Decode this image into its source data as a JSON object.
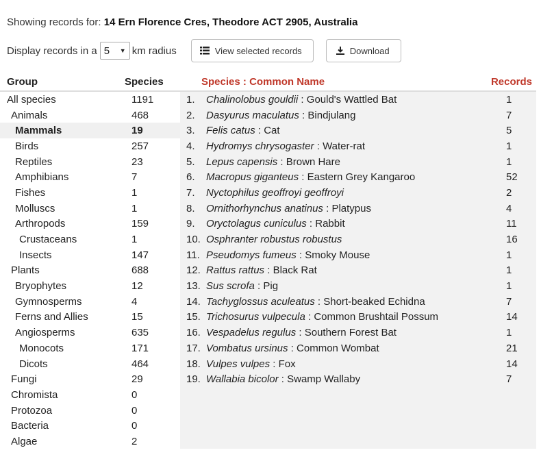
{
  "location": {
    "prefix": "Showing records for:",
    "address": "14 Ern Florence Cres, Theodore ACT 2905, Australia"
  },
  "controls": {
    "radius_prefix": "Display records in a",
    "radius_value": "5",
    "radius_suffix": "km radius",
    "view_selected_label": "View selected records",
    "download_label": "Download"
  },
  "groups": {
    "header_group": "Group",
    "header_species": "Species",
    "rows": [
      {
        "name": "All species",
        "count": "1191",
        "level": 0
      },
      {
        "name": "Animals",
        "count": "468",
        "level": 1
      },
      {
        "name": "Mammals",
        "count": "19",
        "level": 2,
        "selected": true
      },
      {
        "name": "Birds",
        "count": "257",
        "level": 2
      },
      {
        "name": "Reptiles",
        "count": "23",
        "level": 2
      },
      {
        "name": "Amphibians",
        "count": "7",
        "level": 2
      },
      {
        "name": "Fishes",
        "count": "1",
        "level": 2
      },
      {
        "name": "Molluscs",
        "count": "1",
        "level": 2
      },
      {
        "name": "Arthropods",
        "count": "159",
        "level": 2
      },
      {
        "name": "Crustaceans",
        "count": "1",
        "level": 3
      },
      {
        "name": "Insects",
        "count": "147",
        "level": 3
      },
      {
        "name": "Plants",
        "count": "688",
        "level": 1
      },
      {
        "name": "Bryophytes",
        "count": "12",
        "level": 2
      },
      {
        "name": "Gymnosperms",
        "count": "4",
        "level": 2
      },
      {
        "name": "Ferns and Allies",
        "count": "15",
        "level": 2
      },
      {
        "name": "Angiosperms",
        "count": "635",
        "level": 2
      },
      {
        "name": "Monocots",
        "count": "171",
        "level": 3
      },
      {
        "name": "Dicots",
        "count": "464",
        "level": 3
      },
      {
        "name": "Fungi",
        "count": "29",
        "level": 1
      },
      {
        "name": "Chromista",
        "count": "0",
        "level": 1
      },
      {
        "name": "Protozoa",
        "count": "0",
        "level": 1
      },
      {
        "name": "Bacteria",
        "count": "0",
        "level": 1
      },
      {
        "name": "Algae",
        "count": "2",
        "level": 1
      }
    ]
  },
  "species": {
    "header_species": "Species",
    "header_sep": " : ",
    "header_common": "Common Name",
    "header_records": "Records",
    "rows": [
      {
        "num": "1.",
        "sci": "Chalinolobus gouldii",
        "common": "Gould's Wattled Bat",
        "records": "1"
      },
      {
        "num": "2.",
        "sci": "Dasyurus maculatus",
        "common": "Bindjulang",
        "records": "7"
      },
      {
        "num": "3.",
        "sci": "Felis catus",
        "common": "Cat",
        "records": "5"
      },
      {
        "num": "4.",
        "sci": "Hydromys chrysogaster",
        "common": "Water-rat",
        "records": "1"
      },
      {
        "num": "5.",
        "sci": "Lepus capensis",
        "common": "Brown Hare",
        "records": "1"
      },
      {
        "num": "6.",
        "sci": "Macropus giganteus",
        "common": "Eastern Grey Kangaroo",
        "records": "52"
      },
      {
        "num": "7.",
        "sci": "Nyctophilus geoffroyi geoffroyi",
        "common": "",
        "records": "2"
      },
      {
        "num": "8.",
        "sci": "Ornithorhynchus anatinus",
        "common": "Platypus",
        "records": "4"
      },
      {
        "num": "9.",
        "sci": "Oryctolagus cuniculus",
        "common": "Rabbit",
        "records": "11"
      },
      {
        "num": "10.",
        "sci": "Osphranter robustus robustus",
        "common": "",
        "records": "16"
      },
      {
        "num": "11.",
        "sci": "Pseudomys fumeus",
        "common": "Smoky Mouse",
        "records": "1"
      },
      {
        "num": "12.",
        "sci": "Rattus rattus",
        "common": "Black Rat",
        "records": "1"
      },
      {
        "num": "13.",
        "sci": "Sus scrofa",
        "common": "Pig",
        "records": "1"
      },
      {
        "num": "14.",
        "sci": "Tachyglossus aculeatus",
        "common": "Short-beaked Echidna",
        "records": "7"
      },
      {
        "num": "15.",
        "sci": "Trichosurus vulpecula",
        "common": "Common Brushtail Possum",
        "records": "14"
      },
      {
        "num": "16.",
        "sci": "Vespadelus regulus",
        "common": "Southern Forest Bat",
        "records": "1"
      },
      {
        "num": "17.",
        "sci": "Vombatus ursinus",
        "common": "Common Wombat",
        "records": "21"
      },
      {
        "num": "18.",
        "sci": "Vulpes vulpes",
        "common": "Fox",
        "records": "14"
      },
      {
        "num": "19.",
        "sci": "Wallabia bicolor",
        "common": "Swamp Wallaby",
        "records": "7"
      }
    ]
  },
  "colors": {
    "accent_red": "#c0392b",
    "panel_bg": "#f2f2f2",
    "selected_bg": "#f0f0f0"
  }
}
